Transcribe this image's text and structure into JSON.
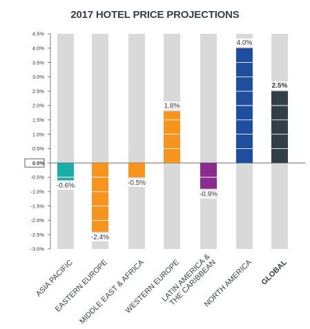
{
  "chart_data": {
    "type": "bar",
    "title": "2017 HOTEL PRICE PROJECTIONS",
    "categories": [
      "ASIA PACIFIC",
      "EASTERN EUROPE",
      "MIDDLE EAST & AFRICA",
      "WESTERN EUROPE",
      "LATIN AMERICA &|THE CARIBBEAN",
      "NORTH AMERICA",
      "GLOBAL"
    ],
    "values": [
      -0.6,
      -2.4,
      -0.5,
      1.8,
      -0.9,
      4.0,
      2.5
    ],
    "value_labels": [
      "-0.6%",
      "-2.4%",
      "-0.5%",
      "1.8%",
      "-0.9%",
      "4.0%",
      "2.5%"
    ],
    "colors": [
      "#1bada8",
      "#f7941d",
      "#f7941d",
      "#f7941d",
      "#8b2a8f",
      "#1f4e9e",
      "#333f48"
    ],
    "background_bar_color": "#d9d9d9",
    "ylim": [
      -3.0,
      4.5
    ],
    "yticks": [
      4.5,
      4.0,
      3.5,
      3.0,
      2.5,
      2.0,
      1.5,
      1.0,
      0.5,
      0.0,
      -0.5,
      -1.0,
      -1.5,
      -2.0,
      -2.5,
      -3.0
    ],
    "ytick_labels": [
      "4.5%",
      "4.0%",
      "3.5%",
      "3.0%",
      "2.5%",
      "2.0%",
      "1.5%",
      "1.0%",
      "0.5%",
      "0.0%",
      "-0.5%",
      "-1.0%",
      "-1.5%",
      "-2.0%",
      "-2.5%",
      "-3.0%"
    ],
    "xlabel": "",
    "ylabel": "",
    "grid": false,
    "legend": "none"
  }
}
